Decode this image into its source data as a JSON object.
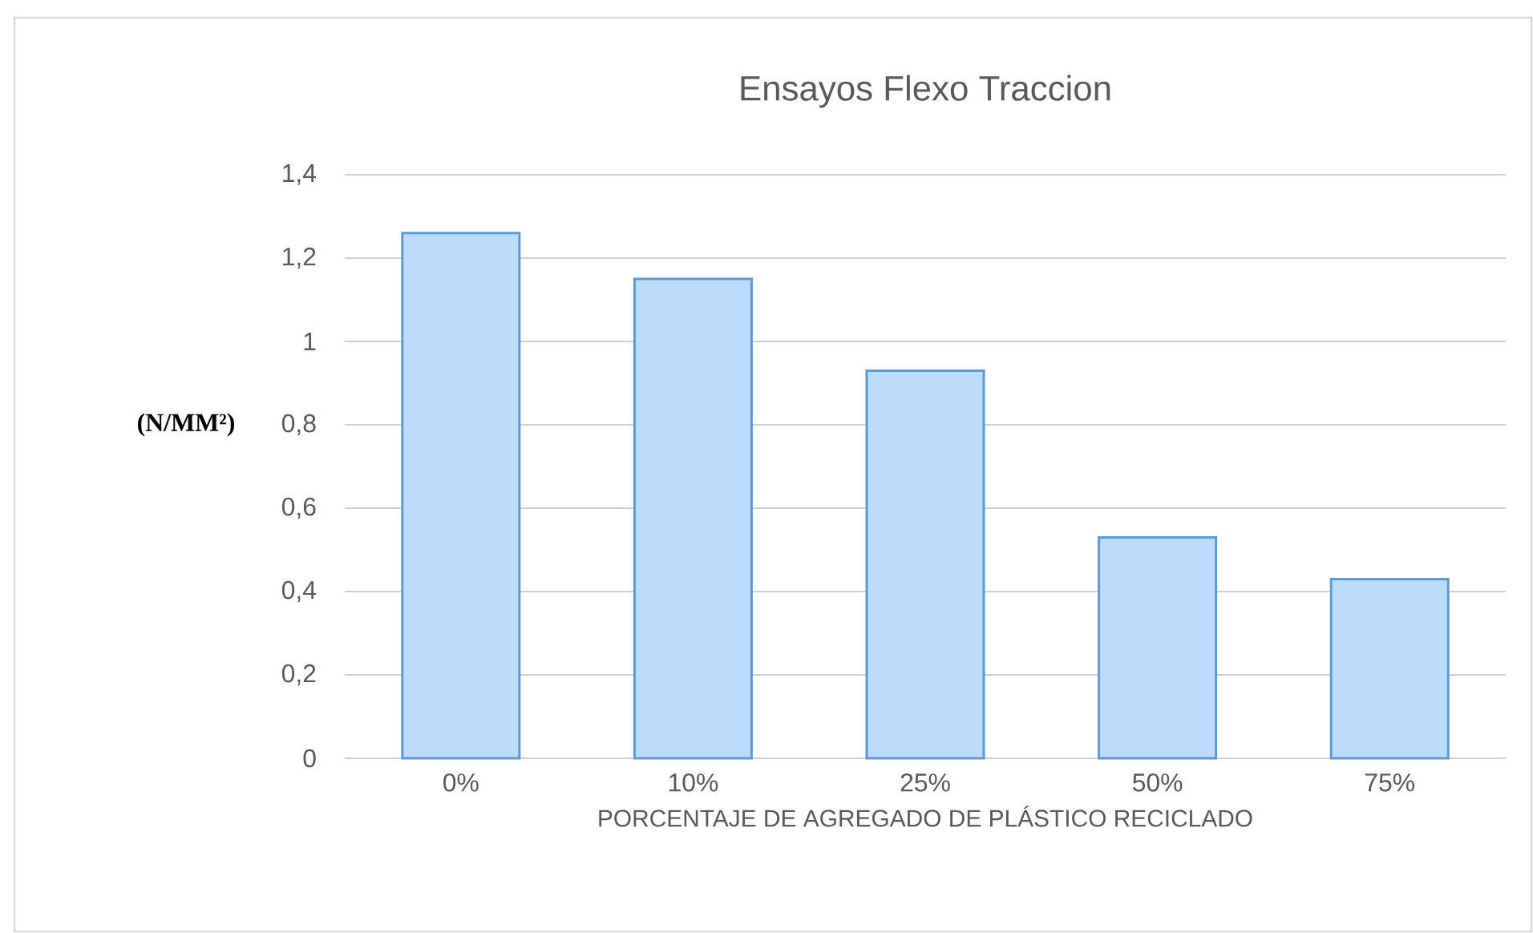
{
  "chart_data": {
    "type": "bar",
    "title": "Ensayos  Flexo Traccion",
    "xlabel": "PORCENTAJE DE AGREGADO DE PLÁSTICO RECICLADO",
    "ylabel": "(N/MM²)",
    "categories": [
      "0%",
      "10%",
      "25%",
      "50%",
      "75%"
    ],
    "values": [
      1.26,
      1.15,
      0.93,
      0.53,
      0.43
    ],
    "color": "#bddcfb",
    "ylim": [
      0,
      1.4
    ],
    "yticks": [
      0,
      {
        "value": 0.2,
        "label": "0,2"
      },
      {
        "value": 0.4,
        "label": "0,4"
      },
      {
        "value": 0.6,
        "label": "0,6"
      },
      {
        "value": 0.8,
        "label": "0,8"
      },
      1,
      {
        "value": 1.2,
        "label": "1,2"
      },
      {
        "value": 1.4,
        "label": "1,4"
      }
    ],
    "grid": "y"
  }
}
